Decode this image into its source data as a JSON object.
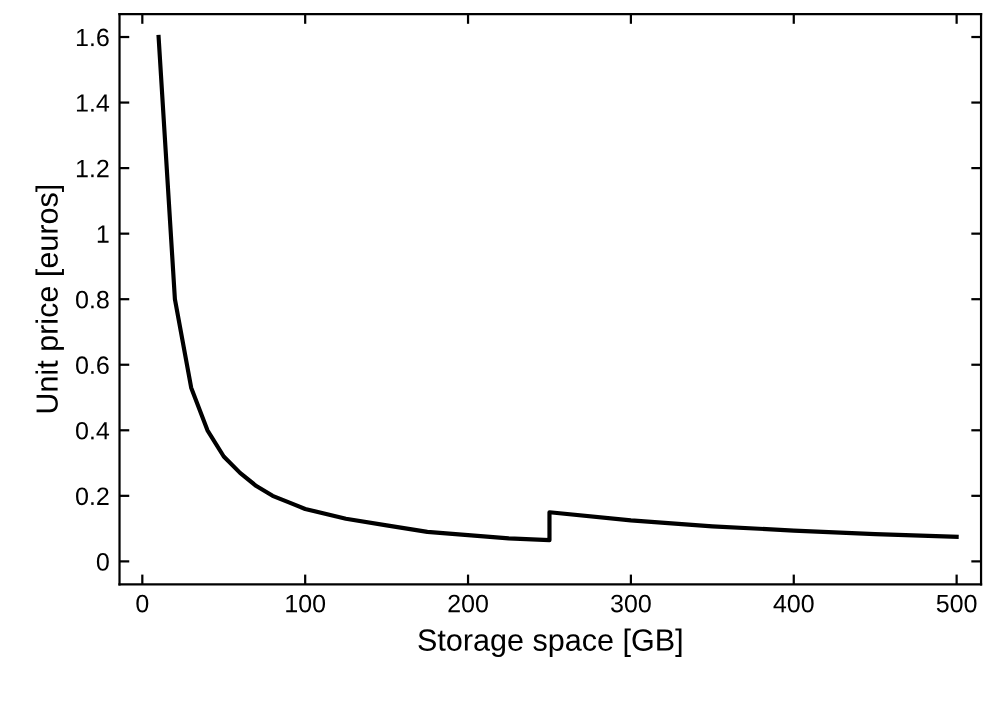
{
  "chart_data": {
    "type": "line",
    "xlabel": "Storage space [GB]",
    "ylabel": "Unit price [euros]",
    "series": [
      {
        "color": "#000000",
        "x": [
          10,
          20,
          30,
          40,
          50,
          60,
          70,
          80,
          90,
          100,
          125,
          150,
          175,
          200,
          225,
          250,
          250,
          300,
          350,
          400,
          450,
          500
        ],
        "values": [
          1.6,
          0.8,
          0.53,
          0.4,
          0.32,
          0.27,
          0.23,
          0.2,
          0.18,
          0.16,
          0.13,
          0.11,
          0.09,
          0.08,
          0.07,
          0.065,
          0.15,
          0.125,
          0.107,
          0.094,
          0.083,
          0.075
        ]
      }
    ],
    "xlim": [
      -14,
      515
    ],
    "ylim": [
      -0.07,
      1.67
    ],
    "xticks": [
      0,
      100,
      200,
      300,
      400,
      500
    ],
    "yticks": [
      0,
      0.2,
      0.4,
      0.6,
      0.8,
      1,
      1.2,
      1.4,
      1.6
    ],
    "grid": false,
    "legend": false,
    "marker": "none",
    "line_style": "solid"
  }
}
